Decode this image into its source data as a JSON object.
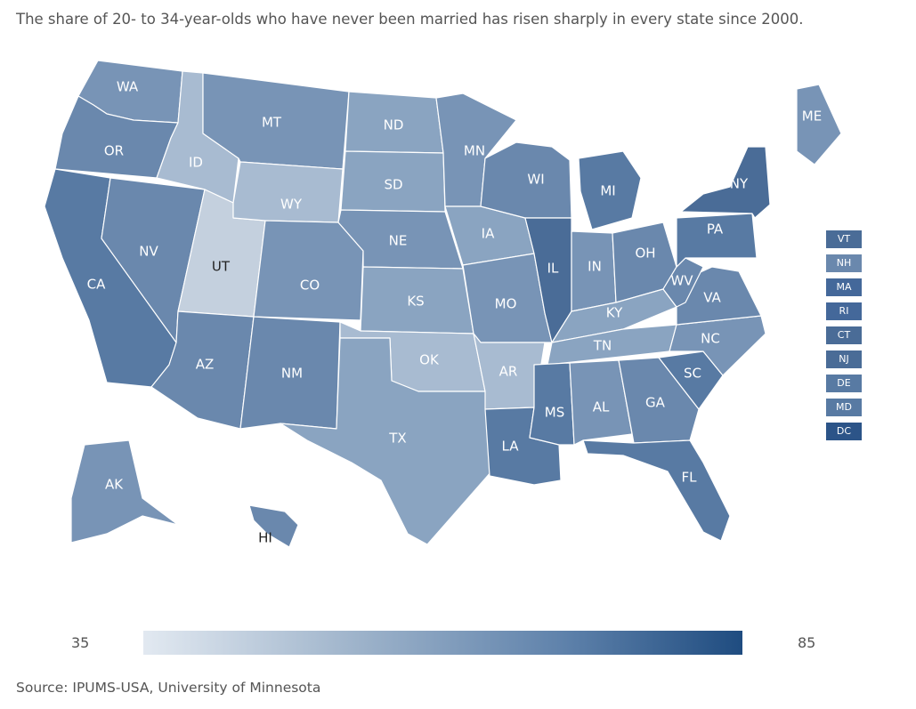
{
  "subtitle": "The share of 20- to 34-year-olds who have never been married has risen sharply in every state since 2000.",
  "source": "Source: IPUMS-USA, University of Minnesota",
  "legend": {
    "min": "35",
    "max": "85",
    "min_color": "#e2e9f1",
    "max_color": "#1f4c80"
  },
  "colors": {
    "light": "#c4d0de",
    "lighter": "#a8bbd1",
    "mid": "#8aa4c1",
    "medium": "#7894b6",
    "mediumdark": "#6a88ad",
    "dark": "#587aa3",
    "darker": "#4a6c97",
    "darkest": "#35598a"
  },
  "states": [
    {
      "abbr": "WA",
      "shade": "medium"
    },
    {
      "abbr": "OR",
      "shade": "mediumdark"
    },
    {
      "abbr": "CA",
      "shade": "dark"
    },
    {
      "abbr": "NV",
      "shade": "mediumdark"
    },
    {
      "abbr": "ID",
      "shade": "lighter"
    },
    {
      "abbr": "UT",
      "shade": "light"
    },
    {
      "abbr": "AZ",
      "shade": "mediumdark"
    },
    {
      "abbr": "MT",
      "shade": "medium"
    },
    {
      "abbr": "WY",
      "shade": "lighter"
    },
    {
      "abbr": "CO",
      "shade": "medium"
    },
    {
      "abbr": "NM",
      "shade": "mediumdark"
    },
    {
      "abbr": "ND",
      "shade": "mid"
    },
    {
      "abbr": "SD",
      "shade": "mid"
    },
    {
      "abbr": "NE",
      "shade": "medium"
    },
    {
      "abbr": "KS",
      "shade": "mid"
    },
    {
      "abbr": "OK",
      "shade": "lighter"
    },
    {
      "abbr": "TX",
      "shade": "mid"
    },
    {
      "abbr": "MN",
      "shade": "medium"
    },
    {
      "abbr": "IA",
      "shade": "mid"
    },
    {
      "abbr": "MO",
      "shade": "medium"
    },
    {
      "abbr": "AR",
      "shade": "lighter"
    },
    {
      "abbr": "LA",
      "shade": "dark"
    },
    {
      "abbr": "WI",
      "shade": "mediumdark"
    },
    {
      "abbr": "IL",
      "shade": "darker"
    },
    {
      "abbr": "MI",
      "shade": "dark"
    },
    {
      "abbr": "IN",
      "shade": "medium"
    },
    {
      "abbr": "OH",
      "shade": "mediumdark"
    },
    {
      "abbr": "KY",
      "shade": "mid"
    },
    {
      "abbr": "TN",
      "shade": "mid"
    },
    {
      "abbr": "MS",
      "shade": "dark"
    },
    {
      "abbr": "AL",
      "shade": "medium"
    },
    {
      "abbr": "GA",
      "shade": "mediumdark"
    },
    {
      "abbr": "FL",
      "shade": "dark"
    },
    {
      "abbr": "SC",
      "shade": "dark"
    },
    {
      "abbr": "NC",
      "shade": "medium"
    },
    {
      "abbr": "VA",
      "shade": "mediumdark"
    },
    {
      "abbr": "WV",
      "shade": "mediumdark"
    },
    {
      "abbr": "PA",
      "shade": "dark"
    },
    {
      "abbr": "NY",
      "shade": "darker"
    },
    {
      "abbr": "ME",
      "shade": "medium"
    },
    {
      "abbr": "AK",
      "shade": "medium"
    },
    {
      "abbr": "HI",
      "shade": "mediumdark"
    }
  ],
  "northeast_boxes": [
    {
      "abbr": "VT",
      "color": "#4a6c97"
    },
    {
      "abbr": "NH",
      "color": "#6a88ad"
    },
    {
      "abbr": "MA",
      "color": "#44689a"
    },
    {
      "abbr": "RI",
      "color": "#44689a"
    },
    {
      "abbr": "CT",
      "color": "#4a6c97"
    },
    {
      "abbr": "NJ",
      "color": "#4a6c97"
    },
    {
      "abbr": "DE",
      "color": "#587aa3"
    },
    {
      "abbr": "MD",
      "color": "#587aa3"
    },
    {
      "abbr": "DC",
      "color": "#2c5488"
    }
  ]
}
